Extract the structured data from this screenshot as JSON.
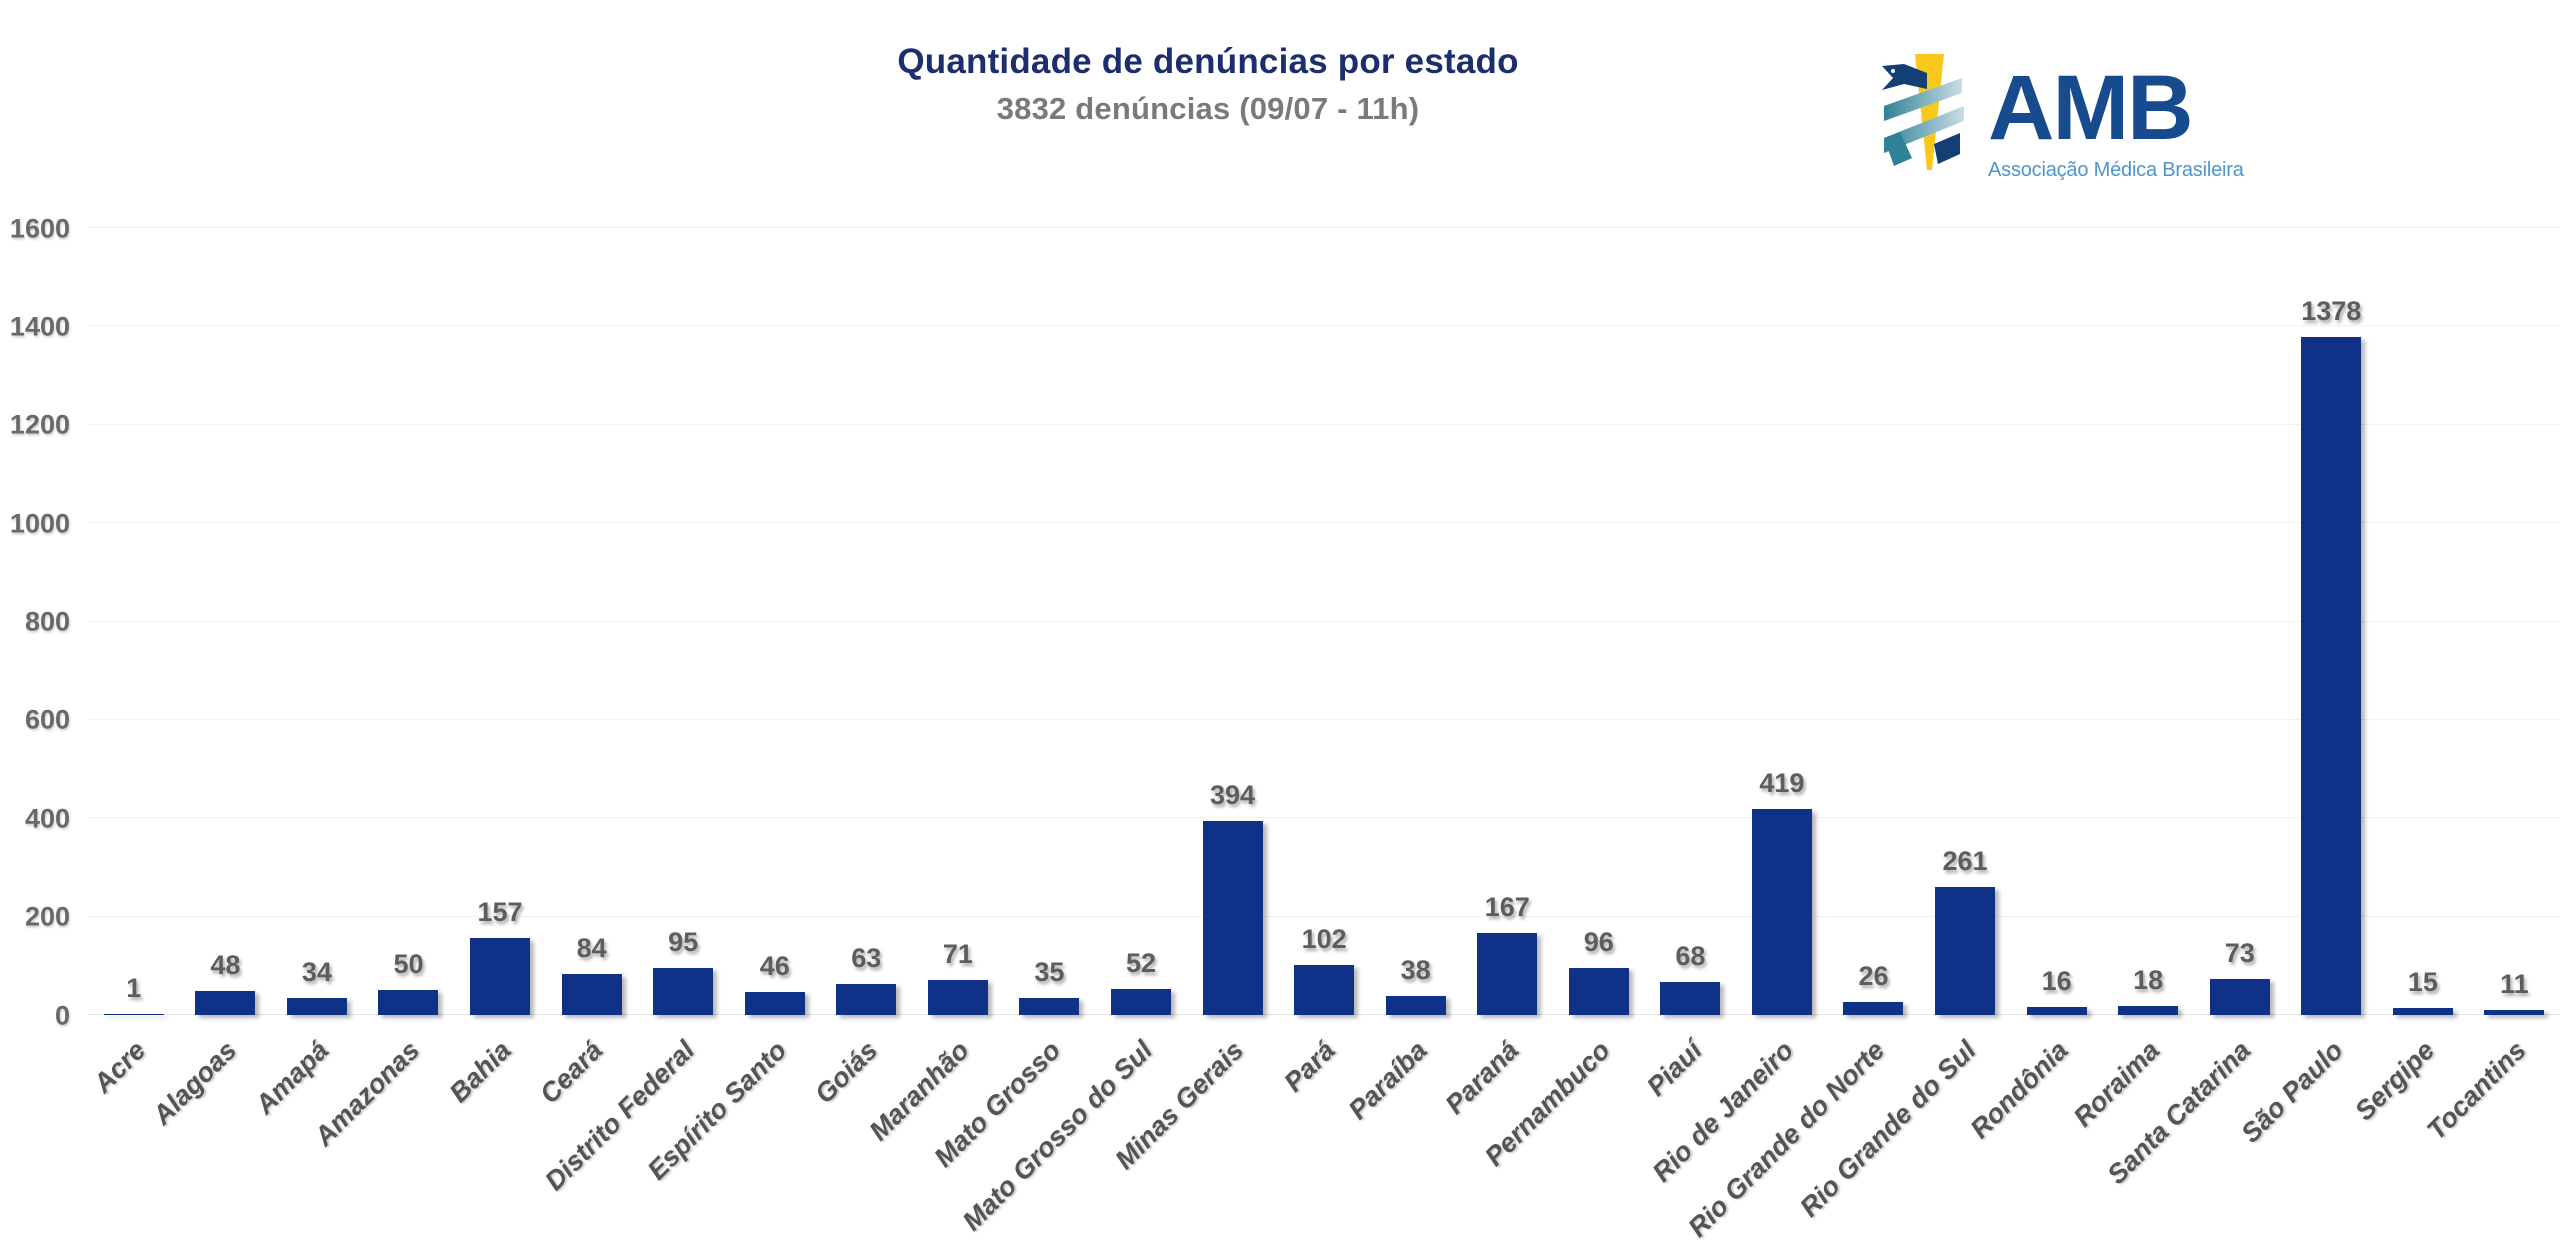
{
  "header": {
    "title": "Quantidade de denúncias por estado",
    "subtitle": "3832 denúncias (09/07 - 11h)"
  },
  "logo": {
    "acronym": "AMB",
    "full_name": "Associação Médica Brasileira"
  },
  "colors": {
    "bar": "#0f3288",
    "title": "#1d2e6d",
    "subtitle": "#7a7a7a",
    "value_label": "#5d5d5d",
    "axis_label": "#696969",
    "grid_line": "#f1f1f1",
    "logo_navy": "#164b8d",
    "logo_light_blue": "#4e96c9",
    "logo_yellow": "#f8c81c",
    "logo_teal": "#3a8da0"
  },
  "chart_data": {
    "type": "bar",
    "title": "Quantidade de denúncias por estado",
    "subtitle": "3832 denúncias (09/07 - 11h)",
    "xlabel": "",
    "ylabel": "",
    "ylim": [
      0,
      1600
    ],
    "yticks": [
      0,
      200,
      400,
      600,
      800,
      1000,
      1200,
      1400,
      1600
    ],
    "grid": true,
    "legend": "none",
    "bar_color": "#0f3288",
    "categories": [
      "Acre",
      "Alagoas",
      "Amapá",
      "Amazonas",
      "Bahia",
      "Ceará",
      "Distrito Federal",
      "Espírito Santo",
      "Goiás",
      "Maranhão",
      "Mato Grosso",
      "Mato Grosso do Sul",
      "Minas Gerais",
      "Pará",
      "Paraíba",
      "Paraná",
      "Pernambuco",
      "Piauí",
      "Rio de Janeiro",
      "Rio Grande do Norte",
      "Rio Grande do Sul",
      "Rondônia",
      "Roraima",
      "Santa Catarina",
      "São Paulo",
      "Sergipe",
      "Tocantins"
    ],
    "values": [
      1,
      48,
      34,
      50,
      157,
      84,
      95,
      46,
      63,
      71,
      35,
      52,
      394,
      102,
      38,
      167,
      96,
      68,
      419,
      26,
      261,
      16,
      18,
      73,
      1378,
      15,
      11
    ]
  }
}
